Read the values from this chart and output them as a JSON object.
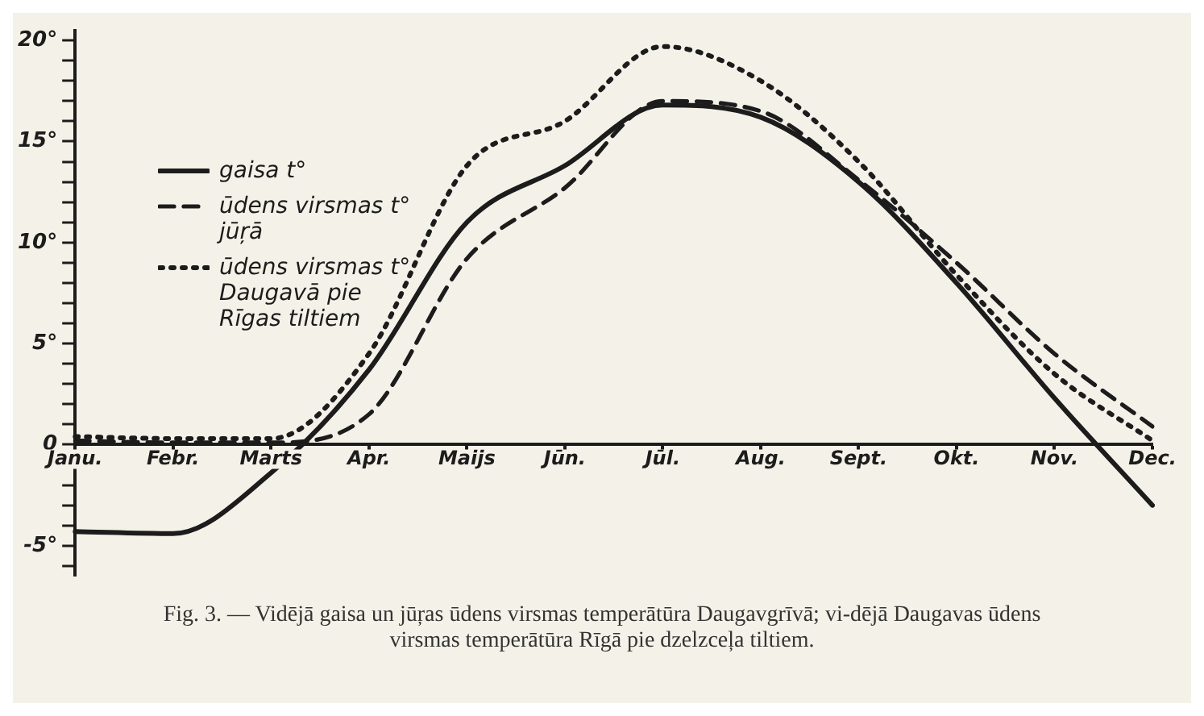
{
  "chart_data": {
    "type": "line",
    "annotations": [
      "Fig. 3. — Vidējā gaisa un jūŗas ūdens virsmas temperātūra Daugavgrīvā; vi-dējā Daugavas ūdens virsmas temperātūra Rīgā pie dzelzceļa tiltiem."
    ],
    "categories": [
      "Janu.",
      "Febr.",
      "Marts",
      "Apr.",
      "Maijs",
      "Jūn.",
      "Jūl.",
      "Aug.",
      "Sept.",
      "Okt.",
      "Nov.",
      "Dec."
    ],
    "ylim": [
      -6.5,
      20.5
    ],
    "yticks": [
      {
        "value": -6,
        "label": null
      },
      {
        "value": -5,
        "label": "-5°"
      },
      {
        "value": -4,
        "label": null
      },
      {
        "value": -3,
        "label": null
      },
      {
        "value": -2,
        "label": null
      },
      {
        "value": -1,
        "label": null
      },
      {
        "value": 0,
        "label": "0"
      },
      {
        "value": 1,
        "label": null
      },
      {
        "value": 2,
        "label": null
      },
      {
        "value": 3,
        "label": null
      },
      {
        "value": 4,
        "label": null
      },
      {
        "value": 5,
        "label": "5°"
      },
      {
        "value": 6,
        "label": null
      },
      {
        "value": 7,
        "label": null
      },
      {
        "value": 8,
        "label": null
      },
      {
        "value": 9,
        "label": null
      },
      {
        "value": 10,
        "label": "10°"
      },
      {
        "value": 11,
        "label": null
      },
      {
        "value": 12,
        "label": null
      },
      {
        "value": 13,
        "label": null
      },
      {
        "value": 14,
        "label": null
      },
      {
        "value": 15,
        "label": "15°"
      },
      {
        "value": 16,
        "label": null
      },
      {
        "value": 17,
        "label": null
      },
      {
        "value": 18,
        "label": null
      },
      {
        "value": 19,
        "label": null
      },
      {
        "value": 20,
        "label": "20°"
      }
    ],
    "grid": false,
    "legend": "top left",
    "marker": "none",
    "series": [
      {
        "name": "gaisa t°",
        "color": "#1c1c1c",
        "line_style": "solid",
        "values": [
          -4.3,
          -4.4,
          -1.4,
          3.7,
          11,
          13.8,
          16.8,
          16.2,
          13,
          8,
          2.3,
          -3
        ]
      },
      {
        "name": "ūdens virsmas t° jūŗā",
        "color": "#1c1c1c",
        "line_style": "dashed",
        "values": [
          0.2,
          0.1,
          0.1,
          1.5,
          9.2,
          12.7,
          17,
          16.5,
          13.1,
          9,
          4.5,
          0.9
        ]
      },
      {
        "name": "ūdens virsmas t° Daugavā pie Rīgas tiltiem",
        "color": "#1c1c1c",
        "line_style": "dotted",
        "values": [
          0.4,
          0.3,
          0.3,
          4.5,
          13.8,
          16,
          19.7,
          18,
          14,
          8.4,
          3.5,
          0.2
        ]
      }
    ]
  }
}
